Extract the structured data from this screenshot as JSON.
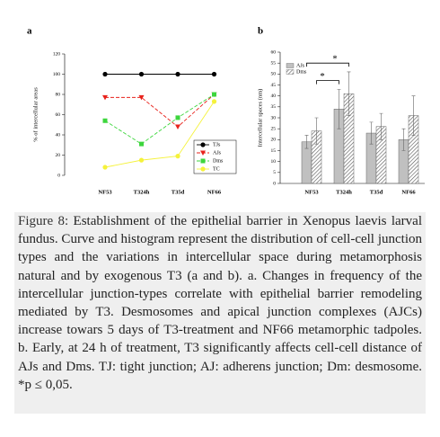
{
  "chart_data": [
    {
      "type": "line",
      "panel": "a",
      "ylabel": "% of intercellular areas",
      "categories": [
        "NF53",
        "T324h",
        "T35d",
        "NF66"
      ],
      "ylim": [
        0,
        120
      ],
      "yticks": [
        0,
        20,
        40,
        60,
        80,
        100,
        120
      ],
      "series": [
        {
          "name": "TJs",
          "color": "#000000",
          "marker": "circle",
          "dashed": false,
          "values": [
            100,
            100,
            100,
            100
          ]
        },
        {
          "name": "AJs",
          "color": "#e8221b",
          "marker": "triangle-down",
          "dashed": true,
          "values": [
            77,
            77,
            48,
            80
          ]
        },
        {
          "name": "Dms",
          "color": "#3dd63d",
          "marker": "square",
          "dashed": true,
          "values": [
            54,
            31,
            57,
            80
          ]
        },
        {
          "name": "TC",
          "color": "#f5f23a",
          "marker": "circle",
          "dashed": false,
          "values": [
            8,
            15,
            19,
            73
          ]
        }
      ],
      "legend": "lower-right"
    },
    {
      "type": "bar",
      "panel": "b",
      "ylabel": "Intercellular spaces (nm)",
      "categories": [
        "NF53",
        "T324h",
        "T35d",
        "NF66"
      ],
      "ylim": [
        0,
        60
      ],
      "yticks": [
        0,
        5,
        10,
        15,
        20,
        25,
        30,
        35,
        40,
        45,
        50,
        55,
        60
      ],
      "series": [
        {
          "name": "AJs",
          "color": "#c0c0c0",
          "hatch": false,
          "values": [
            19,
            34,
            23,
            20
          ],
          "errors": [
            3,
            9,
            5,
            5
          ]
        },
        {
          "name": "Dms",
          "color": "#ffffff",
          "hatch": true,
          "values": [
            24,
            41,
            26,
            31
          ],
          "errors": [
            6,
            10,
            6,
            9
          ]
        }
      ],
      "annotations": [
        {
          "text": "*",
          "y": 55
        },
        {
          "text": "*",
          "y": 47
        }
      ],
      "legend": "upper-left"
    }
  ],
  "caption": {
    "label": "Figure 8:",
    "text": "Establishment of the epithelial barrier in Xenopus laevis larval fundus. Curve and histogram represent the distribution of cell-cell junction types and the variations in intercellular space during metamorphosis natural and by exogenous T3 (a and b). a. Changes in frequency of the intercellular junction-types correlate with epithelial barrier remodeling mediated by T3. Desmosomes and apical junction complexes (AJCs) increase towars 5 days of T3-treatment and NF66 metamorphic tadpoles. b. Early, at 24 h of treatment, T3 significantly affects cell-cell distance of AJs and Dms. TJ: tight junction; AJ: adherens junction; Dm: desmosome. *p ≤ 0,05."
  }
}
